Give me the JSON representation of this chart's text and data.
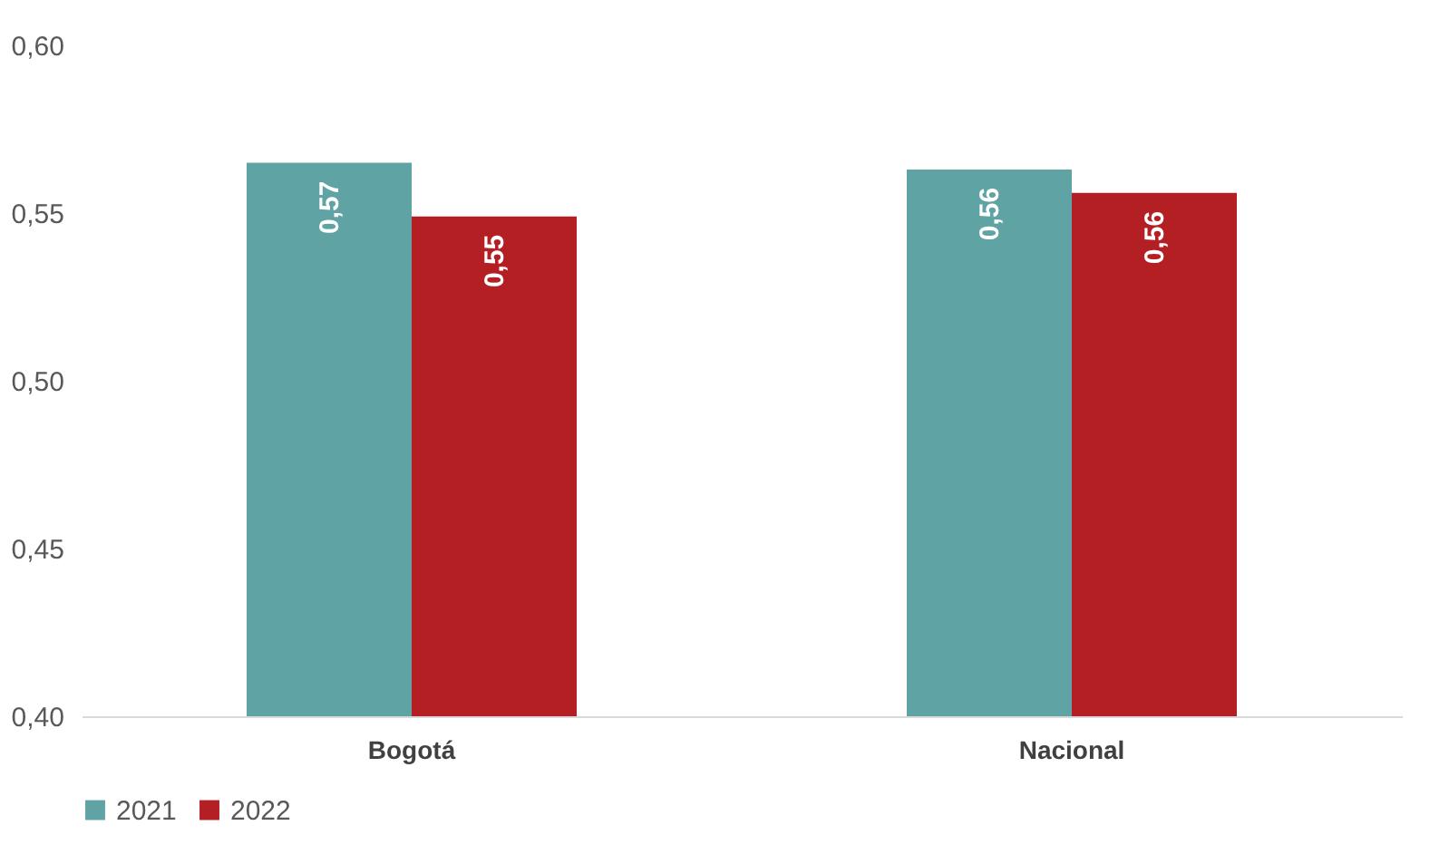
{
  "chart_data": {
    "type": "bar",
    "categories": [
      "Bogotá",
      "Nacional"
    ],
    "series": [
      {
        "name": "2021",
        "color": "#5fa3a4",
        "values": [
          0.565,
          0.563
        ],
        "value_labels": [
          "0,57",
          "0,56"
        ]
      },
      {
        "name": "2022",
        "color": "#b41f24",
        "values": [
          0.549,
          0.556
        ],
        "value_labels": [
          "0,55",
          "0,56"
        ]
      }
    ],
    "ylim": [
      0.4,
      0.6
    ],
    "yticks": [
      {
        "value": 0.4,
        "label": "0,40"
      },
      {
        "value": 0.45,
        "label": "0,45"
      },
      {
        "value": 0.5,
        "label": "0,50"
      },
      {
        "value": 0.55,
        "label": "0,55"
      },
      {
        "value": 0.6,
        "label": "0,60"
      }
    ],
    "legend": "bottom"
  }
}
